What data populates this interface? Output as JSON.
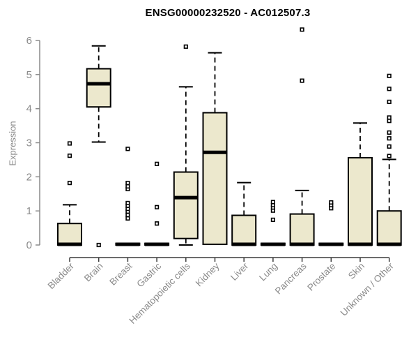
{
  "chart_data": {
    "type": "box",
    "title": "ENSG00000232520 - AC012507.3",
    "ylabel": "Expression",
    "xlabel": "",
    "ylim": [
      0,
      6
    ],
    "yticks": [
      0,
      1,
      2,
      3,
      4,
      5,
      6
    ],
    "grid": false,
    "legend": "none",
    "categories": [
      "Bladder",
      "Brain",
      "Breast",
      "Gastric",
      "Hematopoietic cells",
      "Kidney",
      "Liver",
      "Lung",
      "Pancreas",
      "Prostate",
      "Skin",
      "Unknown / Other"
    ],
    "series": [
      {
        "name": "Bladder",
        "whisker_low": 0,
        "q1": 0,
        "median": 0.02,
        "q3": 0.63,
        "whisker_high": 1.18,
        "outliers": [
          1.82,
          2.62,
          2.98
        ]
      },
      {
        "name": "Brain",
        "whisker_low": 3.02,
        "q1": 4.05,
        "median": 4.73,
        "q3": 5.17,
        "whisker_high": 5.84,
        "outliers": [
          0.0
        ]
      },
      {
        "name": "Breast",
        "whisker_low": 0,
        "q1": 0,
        "median": 0.02,
        "q3": 0.05,
        "whisker_high": 0.05,
        "outliers": [
          0.78,
          0.88,
          0.98,
          1.06,
          1.15,
          1.23,
          1.64,
          1.72,
          1.82,
          2.82
        ]
      },
      {
        "name": "Gastric",
        "whisker_low": 0,
        "q1": 0,
        "median": 0.02,
        "q3": 0.05,
        "whisker_high": 0.05,
        "outliers": [
          0.63,
          1.11,
          2.38
        ]
      },
      {
        "name": "Hematopoietic cells",
        "whisker_low": 0,
        "q1": 0.19,
        "median": 1.39,
        "q3": 2.14,
        "whisker_high": 4.64,
        "outliers": [
          5.82
        ]
      },
      {
        "name": "Kidney",
        "whisker_low": 0,
        "q1": 0.02,
        "median": 2.72,
        "q3": 3.88,
        "whisker_high": 5.64,
        "outliers": []
      },
      {
        "name": "Liver",
        "whisker_low": 0,
        "q1": 0,
        "median": 0.02,
        "q3": 0.87,
        "whisker_high": 1.83,
        "outliers": []
      },
      {
        "name": "Lung",
        "whisker_low": 0,
        "q1": 0,
        "median": 0.02,
        "q3": 0.05,
        "whisker_high": 0.05,
        "outliers": [
          0.74,
          1.01,
          1.1,
          1.17,
          1.26
        ]
      },
      {
        "name": "Pancreas",
        "whisker_low": 0,
        "q1": 0,
        "median": 0.02,
        "q3": 0.91,
        "whisker_high": 1.6,
        "outliers": [
          4.82,
          6.32
        ]
      },
      {
        "name": "Prostate",
        "whisker_low": 0,
        "q1": 0,
        "median": 0.02,
        "q3": 0.05,
        "whisker_high": 0.05,
        "outliers": [
          1.08,
          1.17,
          1.25
        ]
      },
      {
        "name": "Skin",
        "whisker_low": 0,
        "q1": 0,
        "median": 0.02,
        "q3": 2.56,
        "whisker_high": 3.58,
        "outliers": []
      },
      {
        "name": "Unknown / Other",
        "whisker_low": 0,
        "q1": 0,
        "median": 0.02,
        "q3": 1.0,
        "whisker_high": 2.51,
        "outliers": [
          2.61,
          2.89,
          3.13,
          3.3,
          3.64,
          3.74,
          4.2,
          4.58,
          4.96
        ]
      }
    ],
    "colors": {
      "box_fill": "#ece8cd",
      "box_stroke": "#000000",
      "median": "#000000",
      "whisker": "#000000",
      "outlier_stroke": "#000000",
      "outlier_fill": "#ffffff",
      "y_axis": "#8a8a8a",
      "x_axis": "#3c3c3c",
      "tick_label": "#8a8a8a",
      "title_color": "#000000"
    }
  }
}
